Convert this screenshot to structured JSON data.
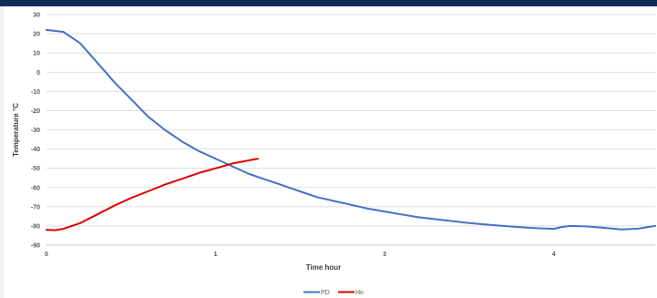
{
  "chart_data": {
    "type": "line",
    "title": "",
    "xlabel": "Time hour",
    "ylabel": "Temperature °C",
    "ylim": [
      -90,
      30
    ],
    "yticks": [
      30,
      20,
      10,
      0,
      -10,
      -20,
      -30,
      -40,
      -50,
      -60,
      -70,
      -80,
      -90
    ],
    "xticks": [
      {
        "value": 0,
        "label": "0"
      },
      {
        "value": 1,
        "label": "1"
      },
      {
        "value": 2,
        "label": "3"
      },
      {
        "value": 3,
        "label": "4"
      }
    ],
    "xlim": [
      0,
      3.6
    ],
    "grid": true,
    "legend_position": "bottom",
    "series": [
      {
        "name": "PD",
        "color": "#4472c4",
        "points": [
          [
            0,
            22
          ],
          [
            0.1,
            21
          ],
          [
            0.2,
            15
          ],
          [
            0.3,
            5
          ],
          [
            0.4,
            -5
          ],
          [
            0.5,
            -14
          ],
          [
            0.6,
            -23
          ],
          [
            0.7,
            -30
          ],
          [
            0.8,
            -36
          ],
          [
            0.9,
            -41
          ],
          [
            1.0,
            -45
          ],
          [
            1.1,
            -49
          ],
          [
            1.2,
            -53
          ],
          [
            1.3,
            -56
          ],
          [
            1.4,
            -59
          ],
          [
            1.5,
            -62
          ],
          [
            1.6,
            -65
          ],
          [
            1.7,
            -67
          ],
          [
            1.8,
            -69
          ],
          [
            1.9,
            -71
          ],
          [
            2.0,
            -72.5
          ],
          [
            2.1,
            -74
          ],
          [
            2.2,
            -75.5
          ],
          [
            2.3,
            -76.5
          ],
          [
            2.4,
            -77.5
          ],
          [
            2.5,
            -78.5
          ],
          [
            2.6,
            -79.3
          ],
          [
            2.7,
            -80
          ],
          [
            2.8,
            -80.6
          ],
          [
            2.9,
            -81.2
          ],
          [
            3.0,
            -81.5
          ],
          [
            3.05,
            -80.5
          ],
          [
            3.1,
            -80
          ],
          [
            3.2,
            -80.3
          ],
          [
            3.3,
            -81
          ],
          [
            3.4,
            -81.8
          ],
          [
            3.5,
            -81.4
          ],
          [
            3.6,
            -80
          ]
        ]
      },
      {
        "name": "Ho",
        "color": "#e00000",
        "points": [
          [
            0,
            -82
          ],
          [
            0.05,
            -82.2
          ],
          [
            0.1,
            -81.5
          ],
          [
            0.2,
            -78.5
          ],
          [
            0.3,
            -74
          ],
          [
            0.4,
            -69.5
          ],
          [
            0.5,
            -65.5
          ],
          [
            0.6,
            -62
          ],
          [
            0.7,
            -58.5
          ],
          [
            0.8,
            -55.5
          ],
          [
            0.9,
            -52.5
          ],
          [
            1.0,
            -50
          ],
          [
            1.1,
            -47.5
          ],
          [
            1.25,
            -45
          ]
        ]
      }
    ]
  }
}
